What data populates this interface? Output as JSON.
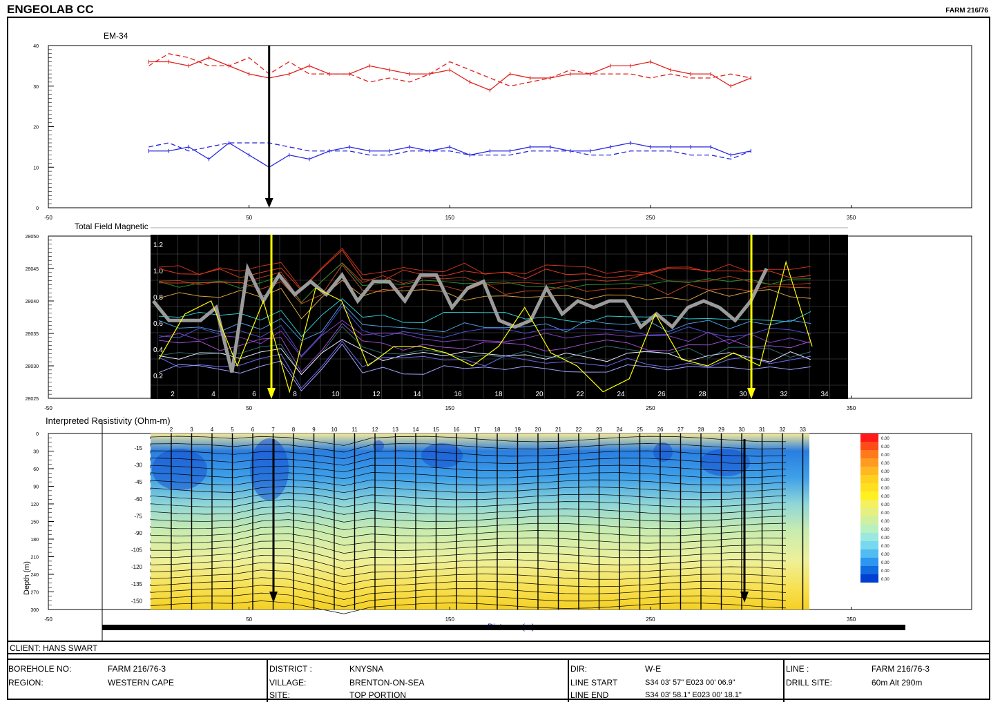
{
  "header": {
    "company": "ENGEOLAB CC",
    "farm": "FARM 216/76"
  },
  "colors": {
    "red": "#e0201c",
    "blue": "#2424e0",
    "yellow": "#ffff00",
    "grey": "#9b9b9b",
    "black_panel": "#000000"
  },
  "chart_data": [
    {
      "type": "line",
      "title": "EM-34",
      "xlim": [
        -50,
        410
      ],
      "ylim": [
        0,
        40
      ],
      "x_ticks": [
        "-50",
        "50",
        "150",
        "250",
        "350"
      ],
      "y_ticks": [
        "0",
        "10",
        "20",
        "30",
        "40"
      ],
      "x": [
        0,
        10,
        20,
        30,
        40,
        50,
        60,
        70,
        80,
        90,
        100,
        110,
        120,
        130,
        140,
        150,
        160,
        170,
        180,
        190,
        200,
        210,
        220,
        230,
        240,
        250,
        260,
        270,
        280,
        290,
        300
      ],
      "series": [
        {
          "color": "red",
          "style": "solid",
          "values": [
            36,
            36,
            35,
            37,
            35,
            33,
            32,
            33,
            35,
            33,
            33,
            35,
            34,
            33,
            33,
            34,
            31,
            29,
            33,
            32,
            32,
            33,
            33,
            35,
            35,
            36,
            34,
            33,
            33,
            30,
            32
          ]
        },
        {
          "color": "red",
          "style": "dash",
          "values": [
            35,
            38,
            37,
            35,
            35,
            37,
            33,
            36,
            33,
            33,
            33,
            31,
            32,
            31,
            33,
            36,
            34,
            32,
            30,
            31,
            32,
            34,
            33,
            33,
            33,
            32,
            33,
            32,
            32,
            33,
            32
          ]
        },
        {
          "color": "blue",
          "style": "solid",
          "values": [
            14,
            14,
            15,
            12,
            16,
            13,
            10,
            13,
            12,
            14,
            15,
            14,
            14,
            15,
            14,
            15,
            13,
            14,
            14,
            15,
            15,
            14,
            14,
            15,
            16,
            15,
            15,
            15,
            15,
            13,
            14
          ]
        },
        {
          "color": "blue",
          "style": "dash",
          "values": [
            15,
            16,
            14,
            15,
            16,
            16,
            16,
            15,
            14,
            14,
            14,
            13,
            13,
            14,
            14,
            14,
            13,
            13,
            13,
            14,
            14,
            14,
            13,
            13,
            14,
            14,
            14,
            13,
            13,
            12,
            14
          ]
        }
      ],
      "marker_x": [
        60
      ]
    },
    {
      "type": "line",
      "title": "Total Field Magnetic",
      "xlim": [
        -50,
        410
      ],
      "ylim": [
        28025,
        28050
      ],
      "x_ticks": [
        "-50",
        "50",
        "150",
        "250",
        "350"
      ],
      "y_ticks": [
        "28025",
        "28030",
        "28035",
        "28040",
        "28045",
        "28050"
      ],
      "inner_y_ticks": [
        "0.2",
        "0.4",
        "0.6",
        "0.8",
        "1.0",
        "1.2"
      ],
      "inner_x_ticks": [
        "2",
        "4",
        "6",
        "8",
        "10",
        "12",
        "14",
        "16",
        "18",
        "20",
        "22",
        "24",
        "26",
        "28",
        "30",
        "32",
        "34"
      ],
      "grey_series": [
        28040,
        28037,
        28037,
        28037,
        28039,
        28029,
        28045,
        28040,
        28044,
        28041,
        28043,
        28041,
        28044,
        28040,
        28043,
        28043,
        28040,
        28044,
        28044,
        28039,
        28042,
        28043,
        28037,
        28036,
        28037,
        28042,
        28038,
        28040,
        28039,
        28040,
        28040,
        28036,
        28038,
        28036,
        28039,
        28040,
        28039,
        28037,
        28040,
        28045
      ],
      "yellow_series": [
        28031,
        28038,
        28040,
        28030,
        28040,
        28026,
        28042,
        28040,
        28030,
        28033,
        28033,
        28032,
        28030,
        28033,
        28039,
        28032,
        28030,
        28026,
        28028,
        28038,
        28031,
        28030,
        28032,
        28030,
        28046,
        28033
      ],
      "marker_x": [
        58,
        288
      ]
    },
    {
      "type": "heatmap",
      "title": "Interpreted Resistivity (Ohm-m)",
      "xlabel": "Distance (m)",
      "ylabel": "Depth (m)",
      "xlim": [
        -50,
        410
      ],
      "x_ticks": [
        "-50",
        "50",
        "150",
        "250",
        "350"
      ],
      "y_ticks": [
        "0",
        "30",
        "60",
        "90",
        "120",
        "150",
        "180",
        "210",
        "240",
        "270",
        "300"
      ],
      "inner_y_ticks": [
        "-15",
        "-30",
        "-45",
        "-60",
        "-75",
        "-90",
        "-105",
        "-120",
        "-135",
        "-150"
      ],
      "station_labels": [
        "2",
        "3",
        "4",
        "5",
        "6",
        "7",
        "8",
        "9",
        "10",
        "11",
        "12",
        "13",
        "14",
        "15",
        "16",
        "17",
        "18",
        "19",
        "20",
        "21",
        "22",
        "23",
        "24",
        "25",
        "26",
        "27",
        "28",
        "29",
        "30",
        "31",
        "32",
        "33"
      ],
      "legend_colors": [
        "#ff1a1a",
        "#ff4a1a",
        "#ff7a1a",
        "#ff9a22",
        "#ffb822",
        "#ffd020",
        "#ffe020",
        "#fff020",
        "#f4f060",
        "#e6f080",
        "#d0f0a0",
        "#b8f0c0",
        "#9ae8e0",
        "#78d8f0",
        "#50bcf0",
        "#2c96f0",
        "#106ae0",
        "#0040d0"
      ],
      "legend_labels": [
        "0.00",
        "0.00",
        "0.00",
        "0.00",
        "0.00",
        "0.00",
        "0.00",
        "0.00",
        "0.00",
        "0.00",
        "0.00",
        "0.00",
        "0.00",
        "0.00",
        "0.00",
        "0.00",
        "0.00",
        "0.00"
      ],
      "marker_x": [
        58,
        288
      ]
    }
  ],
  "footer": {
    "client": "CLIENT: HANS SWART",
    "borehole_label": "BOREHOLE NO:",
    "borehole_value": "FARM 216/76-3",
    "region_label": "REGION:",
    "region_value": "WESTERN CAPE",
    "district_label": "DISTRICT :",
    "district_value": "KNYSNA",
    "village_label": "VILLAGE:",
    "village_value": "BRENTON-ON-SEA",
    "site_label": "SITE:",
    "site_value": "TOP PORTION",
    "dir_label": "DIR:",
    "dir_value": "W-E",
    "line_start_label": "LINE START",
    "line_start_value": "S34 03' 57\" E023 00' 06.9\"",
    "line_end_label": "LINE END",
    "line_end_value": "S34 03' 58.1\" E023 00' 18.1\"",
    "line_label": "LINE  :",
    "line_value": "FARM 216/76-3",
    "drill_label": "DRILL SITE:",
    "drill_value": "60m Alt 290m"
  }
}
